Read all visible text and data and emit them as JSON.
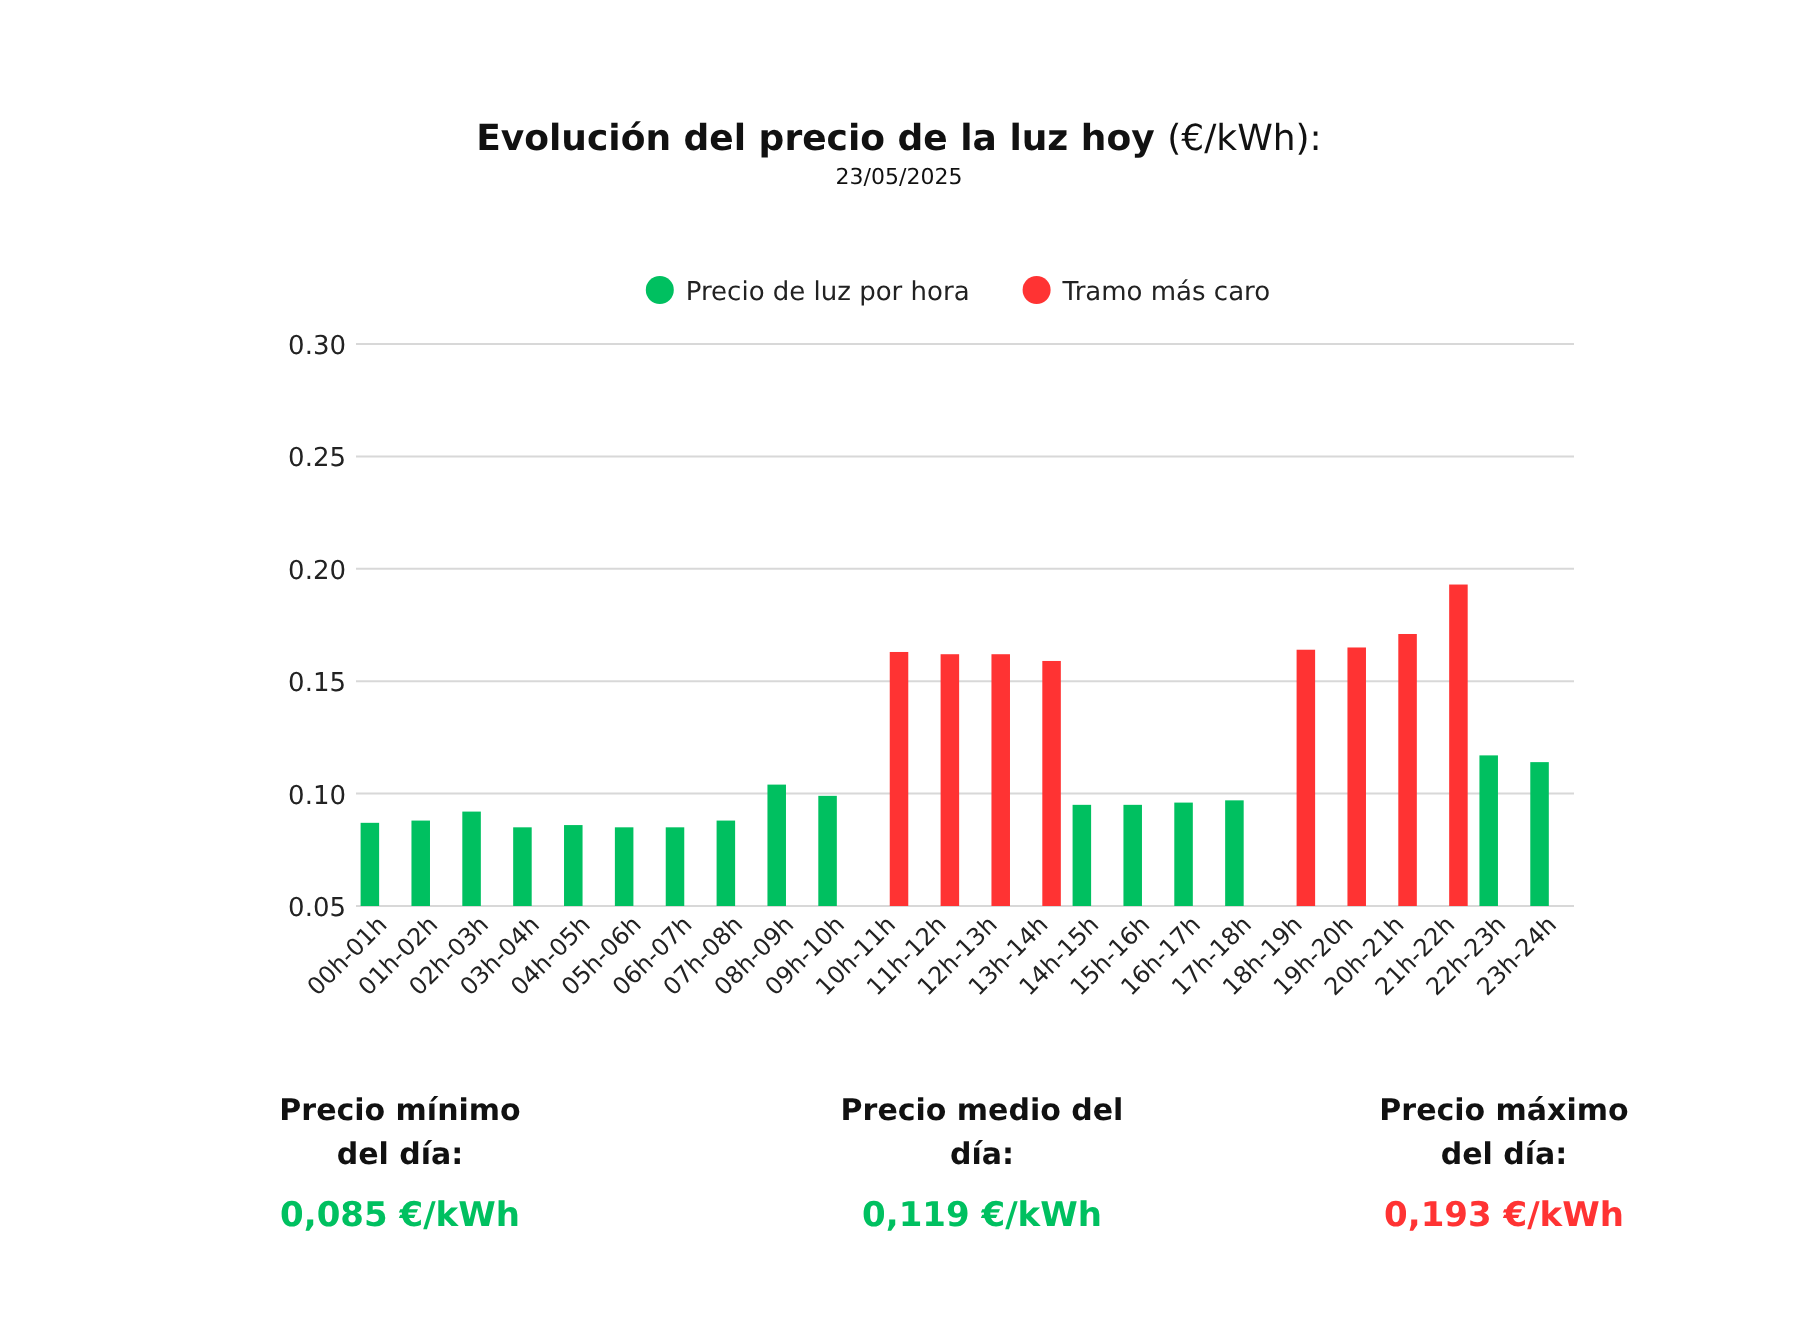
{
  "chart_data": {
    "type": "bar",
    "title": "Evolución del precio de la luz hoy (€/kWh):",
    "subtitle": "23/05/2025",
    "categories": [
      "00h-01h",
      "01h-02h",
      "02h-03h",
      "03h-04h",
      "04h-05h",
      "05h-06h",
      "06h-07h",
      "07h-08h",
      "08h-09h",
      "09h-10h",
      "10h-11h",
      "11h-12h",
      "12h-13h",
      "13h-14h",
      "14h-15h",
      "15h-16h",
      "16h-17h",
      "17h-18h",
      "18h-19h",
      "19h-20h",
      "20h-21h",
      "21h-22h",
      "22h-23h",
      "23h-24h"
    ],
    "series": [
      {
        "name": "Precio de luz por hora",
        "color": "#00c060",
        "values": [
          0.087,
          0.088,
          0.092,
          0.085,
          0.086,
          0.085,
          0.085,
          0.088,
          0.104,
          0.099,
          null,
          null,
          null,
          null,
          0.095,
          0.095,
          0.096,
          0.097,
          null,
          null,
          null,
          null,
          0.117,
          0.114
        ]
      },
      {
        "name": "Tramo más caro",
        "color": "#ff3333",
        "values": [
          null,
          null,
          null,
          null,
          null,
          null,
          null,
          null,
          null,
          null,
          0.163,
          0.162,
          0.162,
          0.159,
          null,
          null,
          null,
          null,
          0.164,
          0.165,
          0.171,
          0.193,
          null,
          null
        ]
      }
    ],
    "ylim": [
      0.05,
      0.3
    ],
    "yticks": [
      {
        "value": 0.05,
        "label": "0.05"
      },
      {
        "value": 0.1,
        "label": "0.10"
      },
      {
        "value": 0.15,
        "label": "0.15"
      },
      {
        "value": 0.2,
        "label": "0.20"
      },
      {
        "value": 0.25,
        "label": "0.25"
      },
      {
        "value": 0.3,
        "label": "0.30"
      }
    ],
    "grid": "y",
    "legend": "top",
    "annotations": [
      "Precio mínimo del día:",
      "Precio medio del día:",
      "Precio máximo del día:",
      "0,085 €/kWh",
      "0,119 €/kWh",
      "0,193 €/kWh"
    ]
  }
}
